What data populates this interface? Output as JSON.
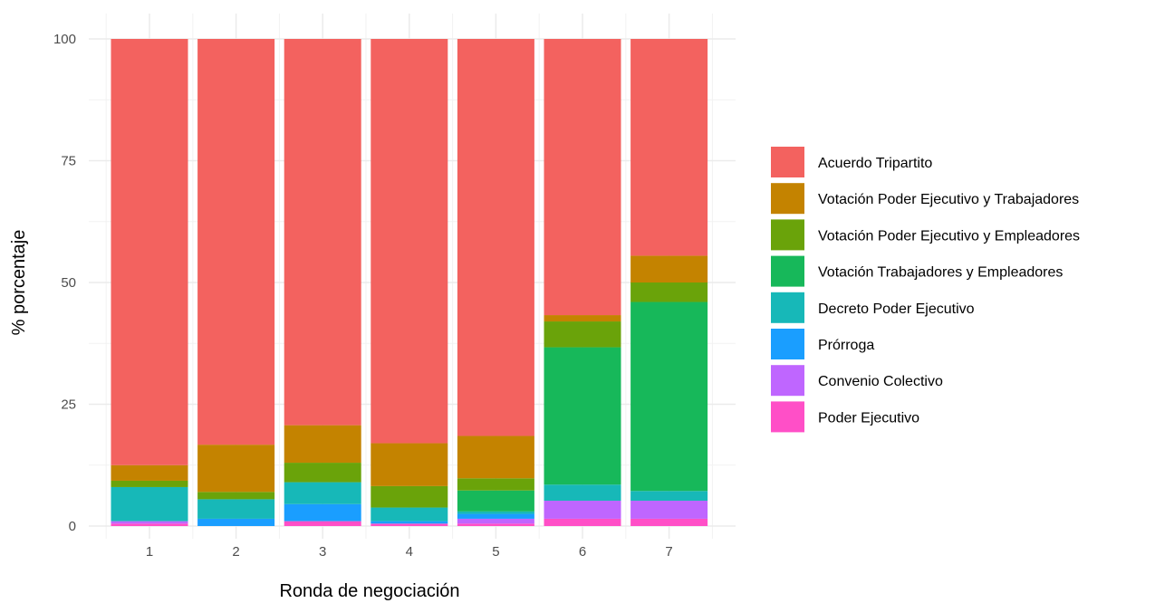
{
  "chart_data": {
    "type": "bar",
    "stacked": true,
    "xlabel": "Ronda de negociación",
    "ylabel": "% porcentaje",
    "ylim": [
      0,
      100
    ],
    "yticks": [
      0,
      25,
      50,
      75,
      100
    ],
    "grid": true,
    "legend_position": "right",
    "categories": [
      "1",
      "2",
      "3",
      "4",
      "5",
      "6",
      "7"
    ],
    "series": [
      {
        "name": "Poder Ejecutivo",
        "color": "#FF4FC7",
        "values": [
          0.5,
          0,
          1.0,
          0.5,
          0.5,
          1.5,
          1.5
        ]
      },
      {
        "name": "Convenio Colectivo",
        "color": "#BF66FF",
        "values": [
          0.5,
          0,
          0,
          0,
          1.0,
          3.7,
          3.7
        ]
      },
      {
        "name": "Prórroga",
        "color": "#1A9EFF",
        "values": [
          0,
          1.5,
          3.5,
          0.5,
          1.0,
          0,
          0
        ]
      },
      {
        "name": "Decreto Poder Ejecutivo",
        "color": "#17B8B8",
        "values": [
          7.0,
          4.0,
          4.5,
          2.8,
          0.5,
          3.3,
          2.0
        ]
      },
      {
        "name": "Votación Trabajadores y Empleadores",
        "color": "#17B85A",
        "values": [
          0,
          0,
          0,
          0,
          4.3,
          28.2,
          38.8
        ]
      },
      {
        "name": "Votación Poder Ejecutivo y Empleadores",
        "color": "#6AA30A",
        "values": [
          1.3,
          1.5,
          4.0,
          4.4,
          2.5,
          5.3,
          4.0
        ]
      },
      {
        "name": "Votación Poder Ejecutivo y Trabajadores",
        "color": "#C48300",
        "values": [
          3.2,
          9.7,
          7.7,
          8.8,
          8.7,
          1.3,
          5.5
        ]
      },
      {
        "name": "Acuerdo Tripartito",
        "color": "#F3625F",
        "values": [
          87.5,
          83.3,
          79.3,
          83.0,
          81.5,
          56.7,
          44.5
        ]
      }
    ],
    "legend_order": [
      "Acuerdo Tripartito",
      "Votación Poder Ejecutivo y Trabajadores",
      "Votación Poder Ejecutivo y Empleadores",
      "Votación Trabajadores y Empleadores",
      "Decreto Poder Ejecutivo",
      "Prórroga",
      "Convenio Colectivo",
      "Poder Ejecutivo"
    ]
  }
}
